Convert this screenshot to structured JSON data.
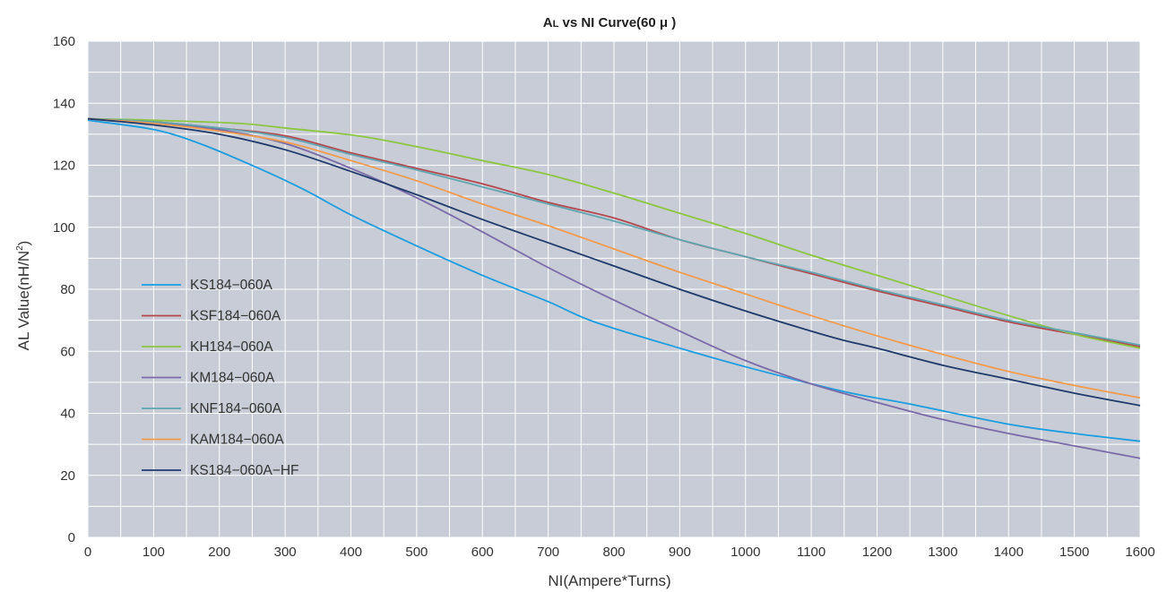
{
  "chart_data": {
    "type": "line",
    "title_main": "A",
    "title_sub": "L",
    "title_rest": " vs NI Curve(60 μ )",
    "xlabel": "NI(Ampere*Turns)",
    "ylabel_main": "AL Value(nH/N",
    "ylabel_sup": "2",
    "ylabel_end": ")",
    "xlim": [
      0,
      1600
    ],
    "ylim": [
      0,
      160
    ],
    "xticks": [
      0,
      100,
      200,
      300,
      400,
      500,
      600,
      700,
      800,
      900,
      1000,
      1100,
      1200,
      1300,
      1400,
      1500,
      1600
    ],
    "yticks": [
      0,
      20,
      40,
      60,
      80,
      100,
      120,
      140,
      160
    ],
    "grid": true,
    "legend_position": "left-middle",
    "series": [
      {
        "name": "KS184−060A",
        "color": "#1a9ee0",
        "x": [
          0,
          100,
          170,
          260,
          330,
          400,
          500,
          600,
          700,
          770,
          900,
          1000,
          1150,
          1250,
          1400,
          1500,
          1600
        ],
        "y": [
          134.5,
          131.5,
          127,
          119,
          112,
          104,
          94,
          84.5,
          76,
          69.5,
          61,
          55,
          47,
          43,
          36.5,
          33.5,
          31
        ]
      },
      {
        "name": "KSF184−060A",
        "color": "#b5474e",
        "x": [
          0,
          100,
          200,
          300,
          400,
          500,
          600,
          700,
          800,
          900,
          1000,
          1100,
          1200,
          1300,
          1400,
          1500,
          1600
        ],
        "y": [
          135,
          134,
          132,
          129.5,
          124,
          119,
          114,
          108,
          103,
          96,
          90.5,
          85,
          79.5,
          74.5,
          69.5,
          65.5,
          61.5
        ]
      },
      {
        "name": "KH184−060A",
        "color": "#8dc63f",
        "x": [
          0,
          100,
          230,
          300,
          410,
          500,
          600,
          700,
          800,
          900,
          1000,
          1100,
          1200,
          1300,
          1400,
          1500,
          1600
        ],
        "y": [
          135,
          134.5,
          133.5,
          132,
          129.5,
          126,
          121.5,
          117,
          111,
          104.5,
          98,
          91,
          84.5,
          78,
          71.5,
          65.5,
          61
        ]
      },
      {
        "name": "KM184−060A",
        "color": "#7a6ba8",
        "x": [
          0,
          100,
          200,
          300,
          400,
          500,
          600,
          700,
          800,
          900,
          1000,
          1100,
          1200,
          1300,
          1400,
          1500,
          1600
        ],
        "y": [
          135,
          133.5,
          131.5,
          127,
          119,
          109.5,
          98.5,
          87,
          76.5,
          66.5,
          57,
          49.5,
          43.5,
          38,
          33.5,
          29.5,
          25.5
        ]
      },
      {
        "name": "KNF184−060A",
        "color": "#5fa6b0",
        "x": [
          0,
          100,
          200,
          300,
          400,
          500,
          600,
          700,
          800,
          900,
          1000,
          1100,
          1200,
          1300,
          1400,
          1500,
          1600
        ],
        "y": [
          135,
          134,
          132,
          129,
          123.5,
          118.5,
          113,
          107.5,
          102,
          96,
          90.5,
          85.5,
          80,
          75,
          70,
          66,
          62
        ]
      },
      {
        "name": "KAM184−060A",
        "color": "#f29b4b",
        "x": [
          0,
          100,
          200,
          300,
          400,
          500,
          600,
          700,
          800,
          900,
          1000,
          1100,
          1200,
          1300,
          1400,
          1500,
          1600
        ],
        "y": [
          135,
          133.5,
          131,
          127.5,
          121.5,
          115,
          107.5,
          100.5,
          93,
          85.5,
          78.5,
          71.5,
          65,
          59,
          53.5,
          49,
          45
        ]
      },
      {
        "name": "KS184−060A−HF",
        "color": "#1f3a6b",
        "x": [
          0,
          100,
          200,
          300,
          400,
          500,
          600,
          700,
          800,
          900,
          1000,
          1100,
          1150,
          1200,
          1300,
          1400,
          1500,
          1600
        ],
        "y": [
          135,
          133,
          130,
          125,
          118,
          110.5,
          102.5,
          95,
          87.5,
          80,
          73,
          66.5,
          63.5,
          61,
          55.5,
          51,
          46.5,
          42.5
        ]
      }
    ]
  }
}
